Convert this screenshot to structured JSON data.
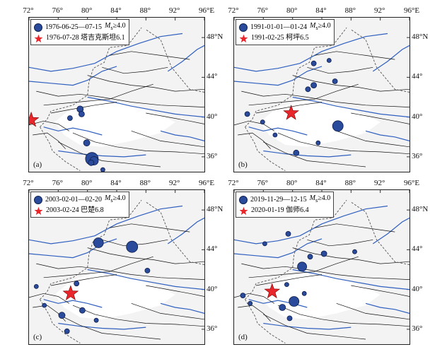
{
  "x_ticks": [
    "72°",
    "76°",
    "80°",
    "84°",
    "88°",
    "92°",
    "96°E"
  ],
  "y_ticks": [
    "48°N",
    "44°",
    "40°",
    "36°"
  ],
  "lon_range": [
    72,
    96
  ],
  "lat_range": [
    34.5,
    50
  ],
  "colors": {
    "quake": "#2a4b9b",
    "star": "#e8262b",
    "fault": "#111111",
    "river": "#2f5fbf",
    "shade": "#f3f3f3"
  },
  "panels": [
    {
      "label": "(a)",
      "legend_events": "1976-06-25—07-15",
      "legend_mag_prefix": "M",
      "legend_mag_sub": "s",
      "legend_mag_suffix": "≥4.0",
      "legend_main": "1976-07-28 塔吉克斯坦6.1",
      "mainshock": {
        "lon": 72.3,
        "lat": 39.7
      },
      "events": [
        {
          "lon": 79.0,
          "lat": 40.8,
          "m": 4.3
        },
        {
          "lon": 79.2,
          "lat": 40.3,
          "m": 4.2
        },
        {
          "lon": 77.6,
          "lat": 39.9,
          "m": 4.1
        },
        {
          "lon": 79.9,
          "lat": 37.4,
          "m": 4.3
        },
        {
          "lon": 80.6,
          "lat": 35.8,
          "m": 5.2
        },
        {
          "lon": 80.9,
          "lat": 35.6,
          "m": 4.6
        },
        {
          "lon": 80.5,
          "lat": 35.4,
          "m": 4.2
        },
        {
          "lon": 82.1,
          "lat": 34.7,
          "m": 4.0
        }
      ]
    },
    {
      "label": "(b)",
      "legend_events": "1991-01-01—01-24",
      "legend_mag_prefix": "M",
      "legend_mag_sub": "s",
      "legend_mag_suffix": "≥4.0",
      "legend_main": "1991-02-25 柯坪6.5",
      "mainshock": {
        "lon": 79.8,
        "lat": 40.4
      },
      "events": [
        {
          "lon": 82.9,
          "lat": 45.4,
          "m": 4.1
        },
        {
          "lon": 85.0,
          "lat": 45.7,
          "m": 4.0
        },
        {
          "lon": 82.9,
          "lat": 43.2,
          "m": 4.2
        },
        {
          "lon": 82.1,
          "lat": 42.8,
          "m": 4.1
        },
        {
          "lon": 85.8,
          "lat": 43.6,
          "m": 4.1
        },
        {
          "lon": 73.8,
          "lat": 40.3,
          "m": 4.1
        },
        {
          "lon": 75.9,
          "lat": 39.5,
          "m": 4.0
        },
        {
          "lon": 77.6,
          "lat": 38.2,
          "m": 4.0
        },
        {
          "lon": 86.2,
          "lat": 39.1,
          "m": 4.9
        },
        {
          "lon": 83.5,
          "lat": 37.4,
          "m": 4.0
        },
        {
          "lon": 80.5,
          "lat": 36.4,
          "m": 4.2
        }
      ]
    },
    {
      "label": "(c)",
      "legend_events": "2003-02-01—02-20",
      "legend_mag_prefix": "M",
      "legend_mag_sub": "s",
      "legend_mag_suffix": "≥4.0",
      "legend_main": "2003-02-24 巴楚6.8",
      "mainshock": {
        "lon": 77.7,
        "lat": 39.6
      },
      "events": [
        {
          "lon": 81.5,
          "lat": 44.7,
          "m": 4.8
        },
        {
          "lon": 86.1,
          "lat": 44.3,
          "m": 5.0
        },
        {
          "lon": 88.2,
          "lat": 41.9,
          "m": 4.1
        },
        {
          "lon": 73.0,
          "lat": 40.3,
          "m": 4.0
        },
        {
          "lon": 78.5,
          "lat": 40.6,
          "m": 4.1
        },
        {
          "lon": 74.1,
          "lat": 38.4,
          "m": 4.0
        },
        {
          "lon": 76.5,
          "lat": 37.4,
          "m": 4.3
        },
        {
          "lon": 79.3,
          "lat": 37.9,
          "m": 4.2
        },
        {
          "lon": 81.2,
          "lat": 36.9,
          "m": 4.0
        },
        {
          "lon": 77.2,
          "lat": 35.8,
          "m": 4.1
        }
      ]
    },
    {
      "label": "(d)",
      "legend_events": "2019-11-29—12-15",
      "legend_mag_prefix": "M",
      "legend_mag_sub": "s",
      "legend_mag_suffix": "≥4.0",
      "legend_main": "2020-01-19 伽师6.4",
      "mainshock": {
        "lon": 77.2,
        "lat": 39.8
      },
      "events": [
        {
          "lon": 79.4,
          "lat": 45.6,
          "m": 4.1
        },
        {
          "lon": 76.2,
          "lat": 44.6,
          "m": 4.0
        },
        {
          "lon": 82.4,
          "lat": 43.3,
          "m": 4.1
        },
        {
          "lon": 84.3,
          "lat": 43.6,
          "m": 4.2
        },
        {
          "lon": 88.5,
          "lat": 43.8,
          "m": 4.0
        },
        {
          "lon": 81.3,
          "lat": 42.3,
          "m": 4.7
        },
        {
          "lon": 79.2,
          "lat": 40.5,
          "m": 4.0
        },
        {
          "lon": 73.2,
          "lat": 39.4,
          "m": 4.1
        },
        {
          "lon": 74.2,
          "lat": 38.6,
          "m": 4.0
        },
        {
          "lon": 78.6,
          "lat": 38.2,
          "m": 4.3
        },
        {
          "lon": 80.2,
          "lat": 38.8,
          "m": 4.8
        },
        {
          "lon": 81.6,
          "lat": 39.6,
          "m": 4.0
        },
        {
          "lon": 79.6,
          "lat": 37.1,
          "m": 4.1
        }
      ]
    }
  ]
}
